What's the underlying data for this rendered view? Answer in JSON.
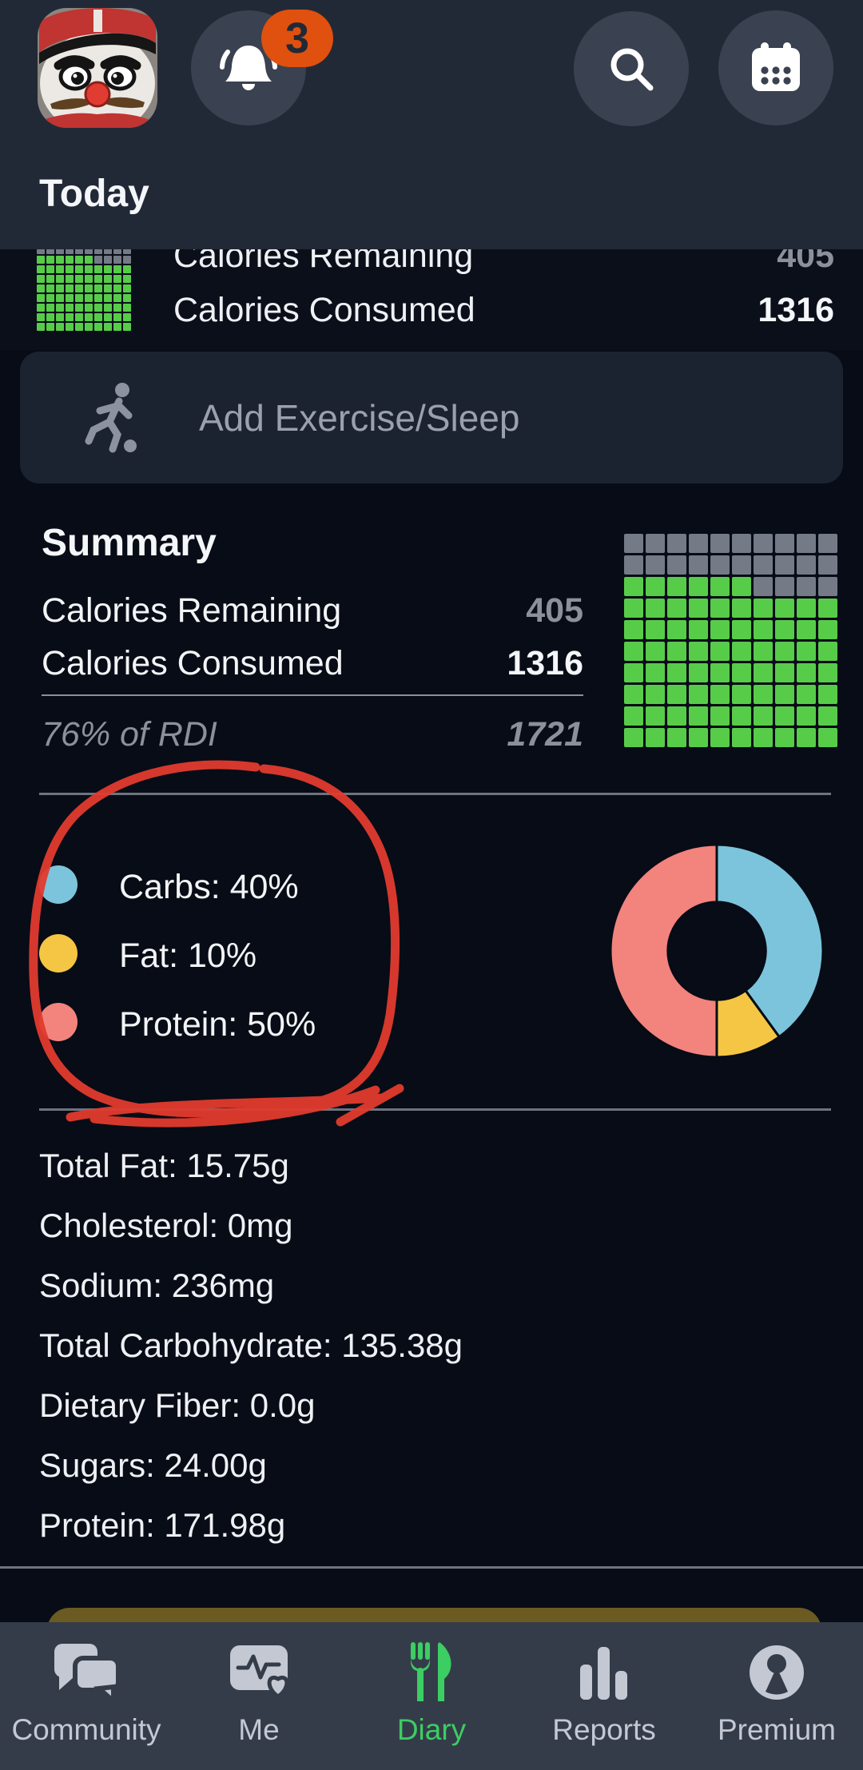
{
  "header": {
    "title": "Today",
    "notification_badge": "3",
    "icons": [
      "avatar",
      "notification-bell",
      "search",
      "calendar"
    ]
  },
  "calorie_banner": {
    "rows": [
      {
        "label": "Calories Remaining",
        "value": "405"
      },
      {
        "label": "Calories Consumed",
        "value": "1316"
      }
    ]
  },
  "add_exercise": {
    "label": "Add Exercise/Sleep",
    "icon": "runner"
  },
  "summary": {
    "title": "Summary",
    "rows": [
      {
        "label": "Calories Remaining",
        "value": "405"
      },
      {
        "label": "Calories Consumed",
        "value": "1316"
      }
    ],
    "rdi": {
      "label": "76% of RDI",
      "value": "1721"
    },
    "grid": {
      "cols": 10,
      "rows": 10,
      "filled_green": 76,
      "green": "#57cc49",
      "gray": "#747a86"
    }
  },
  "chart_data": {
    "type": "donut",
    "slices": [
      {
        "label": "Carbs",
        "pct": 40,
        "color": "#7cc4dc",
        "legend": "Carbs: 40%"
      },
      {
        "label": "Fat",
        "pct": 10,
        "color": "#f5c544",
        "legend": "Fat: 10%"
      },
      {
        "label": "Protein",
        "pct": 50,
        "color": "#f3837d",
        "legend": "Protein: 50%"
      }
    ],
    "start_angle_deg": 0,
    "clockwise": true,
    "inner_radius_ratio": 0.46,
    "legend_position": "left"
  },
  "annotation": {
    "shape": "hand-drawn-circle",
    "color": "#e23b2e",
    "target": "macro-legend"
  },
  "nutrition": {
    "rows": [
      "Total Fat: 15.75g",
      "Cholesterol: 0mg",
      "Sodium: 236mg",
      "Total Carbohydrate: 135.38g",
      "Dietary Fiber: 0.0g",
      "Sugars: 24.00g",
      "Protein: 171.98g"
    ]
  },
  "bottom_nav": {
    "items": [
      {
        "label": "Community",
        "icon": "chat-bubbles",
        "active": false
      },
      {
        "label": "Me",
        "icon": "health-card",
        "active": false
      },
      {
        "label": "Diary",
        "icon": "fork-knife",
        "active": true
      },
      {
        "label": "Reports",
        "icon": "bar-chart",
        "active": false
      },
      {
        "label": "Premium",
        "icon": "keyhole",
        "active": false
      }
    ],
    "active_color": "#3ccd63"
  }
}
